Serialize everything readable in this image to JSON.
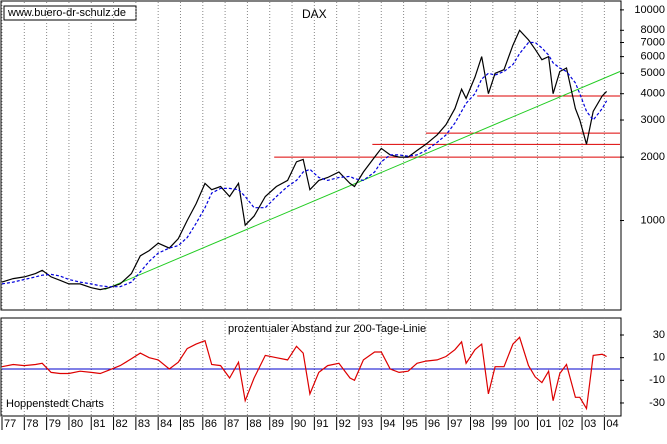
{
  "chart_data": [
    {
      "type": "line",
      "title": "DAX",
      "source": "www.buero-dr-schulz.de",
      "log_scale": true,
      "grid": true,
      "xlim": [
        1977,
        2004.7
      ],
      "ylim": [
        376,
        10900
      ],
      "yticks": [
        1000,
        2000,
        3000,
        4000,
        5000,
        6000,
        7000,
        8000,
        10000
      ],
      "x": [
        1977.0,
        1977.5,
        1978.0,
        1978.5,
        1978.8,
        1979.2,
        1979.6,
        1980.0,
        1980.5,
        1981.0,
        1981.4,
        1981.8,
        1982.3,
        1982.8,
        1983.2,
        1983.6,
        1984.0,
        1984.5,
        1984.9,
        1985.3,
        1985.7,
        1986.1,
        1986.4,
        1986.8,
        1987.2,
        1987.6,
        1987.9,
        1988.3,
        1988.8,
        1989.3,
        1989.8,
        1990.2,
        1990.5,
        1990.8,
        1991.2,
        1991.6,
        1992.1,
        1992.6,
        1992.8,
        1993.2,
        1993.7,
        1994.0,
        1994.4,
        1994.8,
        1995.2,
        1995.6,
        1996.0,
        1996.5,
        1996.9,
        1997.3,
        1997.6,
        1997.8,
        1998.2,
        1998.5,
        1998.8,
        1999.1,
        1999.5,
        1999.9,
        2000.2,
        2000.6,
        2000.9,
        2001.2,
        2001.5,
        2001.7,
        2002.0,
        2002.3,
        2002.7,
        2002.9,
        2003.2,
        2003.5,
        2003.9,
        2004.1
      ],
      "series": [
        {
          "color": "#000000",
          "style": "solid",
          "values": [
            510,
            530,
            540,
            560,
            580,
            540,
            520,
            500,
            500,
            480,
            470,
            480,
            500,
            560,
            680,
            720,
            780,
            740,
            820,
            1000,
            1200,
            1500,
            1400,
            1450,
            1300,
            1500,
            950,
            1050,
            1300,
            1450,
            1550,
            1900,
            1950,
            1400,
            1550,
            1600,
            1700,
            1500,
            1450,
            1700,
            2000,
            2200,
            2050,
            2000,
            2000,
            2150,
            2300,
            2550,
            2850,
            3400,
            4200,
            3800,
            4800,
            6000,
            4000,
            5000,
            5200,
            6800,
            8000,
            7200,
            6500,
            5800,
            6000,
            4000,
            5100,
            5300,
            3400,
            3000,
            2300,
            3300,
            3900,
            4100
          ]
        },
        {
          "color": "#0000dd",
          "style": "dashed",
          "values": [
            500,
            510,
            525,
            540,
            550,
            555,
            545,
            525,
            510,
            500,
            490,
            485,
            485,
            510,
            570,
            640,
            700,
            740,
            760,
            830,
            970,
            1150,
            1350,
            1420,
            1420,
            1400,
            1300,
            1150,
            1150,
            1300,
            1450,
            1550,
            1700,
            1750,
            1600,
            1550,
            1600,
            1620,
            1580,
            1550,
            1700,
            1900,
            2050,
            2050,
            2020,
            2050,
            2150,
            2350,
            2550,
            2900,
            3300,
            3600,
            4000,
            4700,
            5000,
            4900,
            5100,
            5500,
            6200,
            7000,
            7000,
            6600,
            6100,
            5600,
            5300,
            5100,
            4500,
            4000,
            3300,
            3000,
            3400,
            3700
          ]
        }
      ],
      "hlines": [
        {
          "y": 2000,
          "x0": 1989.2,
          "color": "#dd0000"
        },
        {
          "y": 2300,
          "x0": 1993.6,
          "color": "#dd0000"
        },
        {
          "y": 2600,
          "x0": 1996.0,
          "color": "#dd0000"
        },
        {
          "y": 3900,
          "x0": 1998.3,
          "color": "#dd0000"
        }
      ],
      "trend": {
        "x": [
          1981.6,
          2004.7
        ],
        "values": [
          470,
          5100
        ],
        "color": "#22cc22"
      }
    },
    {
      "type": "line",
      "title": "prozentualer Abstand zur 200-Tage-Linie",
      "source": "Hoppenstedt Charts",
      "grid": true,
      "xlim": [
        1977,
        2004.7
      ],
      "ylim": [
        -41.5,
        45
      ],
      "yticks": [
        -30,
        -10,
        10,
        30
      ],
      "xticks": [
        {
          "value": 1977,
          "label": "77"
        },
        {
          "value": 1978,
          "label": "78"
        },
        {
          "value": 1979,
          "label": "79"
        },
        {
          "value": 1980,
          "label": "80"
        },
        {
          "value": 1981,
          "label": "81"
        },
        {
          "value": 1982,
          "label": "82"
        },
        {
          "value": 1983,
          "label": "83"
        },
        {
          "value": 1984,
          "label": "84"
        },
        {
          "value": 1985,
          "label": "85"
        },
        {
          "value": 1986,
          "label": "86"
        },
        {
          "value": 1987,
          "label": "87"
        },
        {
          "value": 1988,
          "label": "88"
        },
        {
          "value": 1989,
          "label": "89"
        },
        {
          "value": 1990,
          "label": "90"
        },
        {
          "value": 1991,
          "label": "91"
        },
        {
          "value": 1992,
          "label": "92"
        },
        {
          "value": 1993,
          "label": "93"
        },
        {
          "value": 1994,
          "label": "94"
        },
        {
          "value": 1995,
          "label": "95"
        },
        {
          "value": 1996,
          "label": "96"
        },
        {
          "value": 1997,
          "label": "97"
        },
        {
          "value": 1998,
          "label": "98"
        },
        {
          "value": 1999,
          "label": "99"
        },
        {
          "value": 2000,
          "label": "00"
        },
        {
          "value": 2001,
          "label": "01"
        },
        {
          "value": 2002,
          "label": "02"
        },
        {
          "value": 2003,
          "label": "03"
        },
        {
          "value": 2004,
          "label": "04"
        }
      ],
      "x": [
        1977.0,
        1977.5,
        1978.0,
        1978.5,
        1978.8,
        1979.2,
        1979.6,
        1980.0,
        1980.5,
        1981.0,
        1981.4,
        1981.8,
        1982.3,
        1982.8,
        1983.2,
        1983.6,
        1984.0,
        1984.5,
        1984.9,
        1985.3,
        1985.7,
        1986.1,
        1986.4,
        1986.8,
        1987.2,
        1987.6,
        1987.9,
        1988.3,
        1988.8,
        1989.3,
        1989.8,
        1990.2,
        1990.5,
        1990.8,
        1991.2,
        1991.6,
        1992.1,
        1992.6,
        1992.8,
        1993.2,
        1993.7,
        1994.0,
        1994.4,
        1994.8,
        1995.2,
        1995.6,
        1996.0,
        1996.5,
        1996.9,
        1997.3,
        1997.6,
        1997.8,
        1998.2,
        1998.5,
        1998.8,
        1999.1,
        1999.5,
        1999.9,
        2000.2,
        2000.6,
        2000.9,
        2001.2,
        2001.5,
        2001.7,
        2002.0,
        2002.3,
        2002.7,
        2002.9,
        2003.2,
        2003.5,
        2003.9,
        2004.1
      ],
      "series": [
        {
          "color": "#dd0000",
          "style": "solid",
          "values": [
            2,
            4,
            3,
            4,
            5,
            -3,
            -4,
            -4,
            -2,
            -3,
            -4,
            -1,
            3,
            9,
            14,
            10,
            8,
            0,
            6,
            18,
            22,
            25,
            4,
            3,
            -8,
            6,
            -28,
            -8,
            12,
            10,
            8,
            20,
            14,
            -22,
            -3,
            3,
            5,
            -8,
            -10,
            8,
            15,
            15,
            0,
            -3,
            -2,
            5,
            7,
            8,
            11,
            17,
            24,
            5,
            17,
            22,
            -22,
            2,
            2,
            22,
            28,
            3,
            -7,
            -12,
            -2,
            -28,
            -4,
            4,
            -25,
            -25,
            -35,
            12,
            13,
            11
          ]
        }
      ],
      "baseline_color": "#0000cc"
    }
  ]
}
